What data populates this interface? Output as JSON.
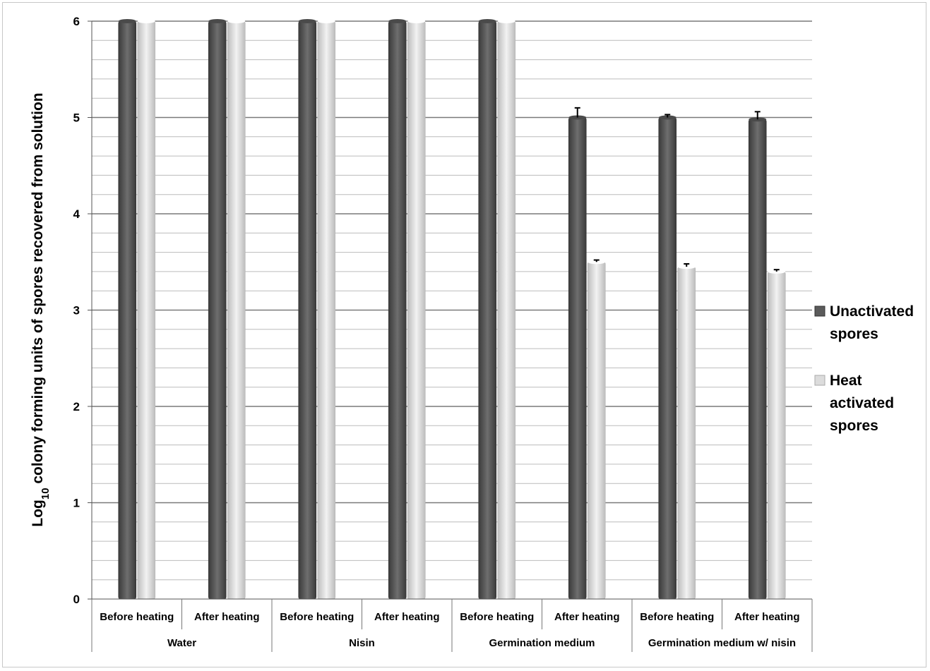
{
  "chart_data": {
    "type": "bar",
    "title": "",
    "ylabel_main": "Log",
    "ylabel_sub": "10",
    "ylabel_rest": " colony forming units of spores recovered from solution",
    "xlabel": "",
    "ylim": [
      0,
      6
    ],
    "yticks": [
      "0",
      "1",
      "2",
      "3",
      "4",
      "5",
      "6"
    ],
    "grid": true,
    "minor_grid_step": 0.2,
    "legend_position": "right",
    "groups": [
      "Water",
      "Nisin",
      "Germination medium",
      "Germination medium w/ nisin"
    ],
    "categories": [
      "Before heating",
      "After heating",
      "Before heating",
      "After heating",
      "Before heating",
      "After heating",
      "Before heating",
      "After heating"
    ],
    "series": [
      {
        "name": "Unactivated spores",
        "legend_lines": [
          "Unactivated",
          "spores"
        ],
        "color": "#5b5b5b",
        "values": [
          6,
          6,
          6,
          6,
          6,
          5.0,
          5.0,
          4.98
        ],
        "errors": [
          0,
          0,
          0,
          0,
          0,
          0.1,
          0.03,
          0.08
        ]
      },
      {
        "name": "Heat activated spores",
        "legend_lines": [
          "Heat",
          "activated",
          "spores"
        ],
        "color": "#dcdcdc",
        "values": [
          6,
          6,
          6,
          6,
          6,
          3.5,
          3.45,
          3.4
        ],
        "errors": [
          0,
          0,
          0,
          0,
          0,
          0.02,
          0.03,
          0.02
        ]
      }
    ]
  }
}
